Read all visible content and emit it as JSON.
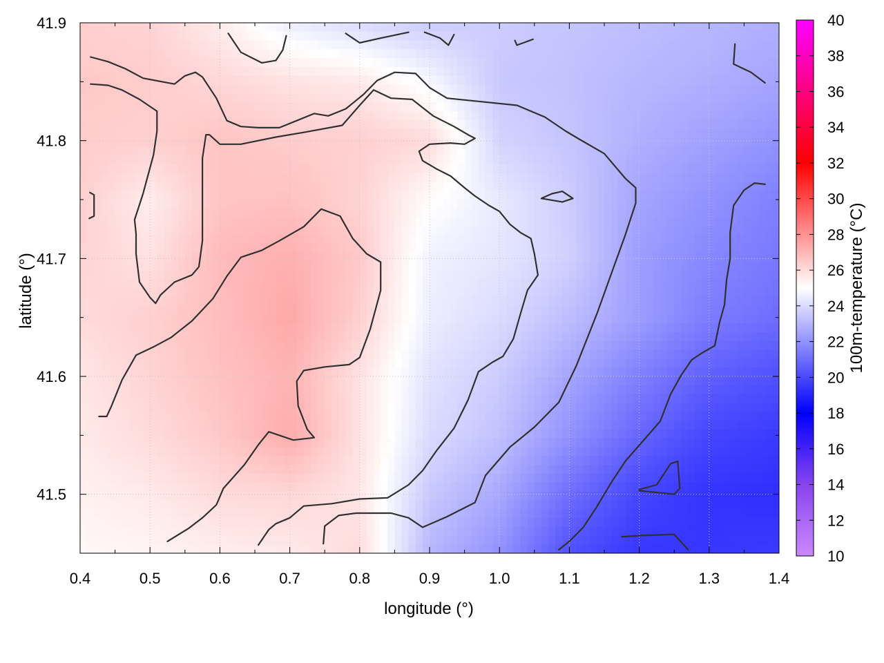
{
  "chart_data": {
    "type": "heatmap",
    "xlabel": "longitude (°)",
    "ylabel": "latitude (°)",
    "colorbar_label": "100m-temperature (°C)",
    "xlim": [
      0.4,
      1.4
    ],
    "ylim": [
      41.45,
      41.9
    ],
    "x_ticks": [
      "0.4",
      "0.5",
      "0.6",
      "0.7",
      "0.8",
      "0.9",
      "1.0",
      "1.1",
      "1.2",
      "1.3",
      "1.4"
    ],
    "y_ticks": [
      "41.5",
      "41.6",
      "41.7",
      "41.8",
      "41.9"
    ],
    "colorbar_range": [
      10,
      40
    ],
    "colorbar_ticks": [
      "10",
      "12",
      "14",
      "16",
      "18",
      "20",
      "22",
      "24",
      "26",
      "28",
      "30",
      "32",
      "34",
      "36",
      "38",
      "40"
    ],
    "colorscale": [
      {
        "value": 10,
        "color": "#cc88ff"
      },
      {
        "value": 14,
        "color": "#8844ee"
      },
      {
        "value": 18,
        "color": "#0000ff"
      },
      {
        "value": 25,
        "color": "#ffffff"
      },
      {
        "value": 32,
        "color": "#ff0000"
      },
      {
        "value": 40,
        "color": "#ff00ff"
      }
    ],
    "grid": true,
    "temperature_field": {
      "x": [
        0.4,
        0.5,
        0.6,
        0.7,
        0.8,
        0.9,
        1.0,
        1.1,
        1.2,
        1.3,
        1.4
      ],
      "y": [
        41.9,
        41.85,
        41.8,
        41.75,
        41.7,
        41.65,
        41.6,
        41.55,
        41.5,
        41.45
      ],
      "values": [
        [
          26.3,
          26.2,
          25.5,
          24.5,
          24.0,
          23.6,
          23.6,
          23.4,
          23.2,
          23.0,
          22.8
        ],
        [
          26.5,
          26.4,
          26.1,
          25.8,
          25.6,
          24.8,
          23.5,
          23.3,
          23.0,
          22.8,
          22.5
        ],
        [
          26.4,
          26.3,
          26.6,
          26.4,
          26.3,
          26.0,
          23.8,
          23.4,
          22.8,
          22.4,
          22.0
        ],
        [
          26.3,
          25.5,
          26.6,
          26.7,
          26.2,
          25.1,
          24.4,
          23.6,
          22.5,
          22.0,
          21.5
        ],
        [
          26.2,
          25.8,
          26.9,
          27.2,
          26.5,
          24.6,
          24.3,
          23.7,
          22.3,
          21.7,
          21.3
        ],
        [
          26.0,
          26.3,
          26.8,
          27.4,
          26.3,
          24.5,
          24.0,
          23.2,
          22.3,
          21.4,
          21.0
        ],
        [
          25.7,
          26.2,
          26.7,
          27.1,
          25.8,
          24.2,
          23.6,
          22.5,
          21.5,
          20.6,
          20.2
        ],
        [
          25.6,
          26.0,
          26.5,
          27.3,
          25.8,
          24.0,
          23.3,
          22.0,
          20.8,
          19.9,
          19.6
        ],
        [
          25.4,
          25.6,
          26.0,
          26.1,
          25.7,
          23.5,
          22.6,
          21.0,
          19.9,
          19.4,
          19.3
        ],
        [
          25.2,
          25.3,
          25.5,
          25.6,
          26.0,
          23.0,
          22.0,
          20.2,
          19.5,
          19.5,
          19.6
        ]
      ]
    },
    "contours": [
      {
        "points": [
          [
            0.612,
            41.891
          ],
          [
            0.63,
            41.875
          ],
          [
            0.66,
            41.866
          ],
          [
            0.68,
            41.868
          ],
          [
            0.69,
            41.877
          ],
          [
            0.695,
            41.889
          ]
        ]
      },
      {
        "points": [
          [
            0.78,
            41.891
          ],
          [
            0.8,
            41.883
          ],
          [
            0.83,
            41.887
          ],
          [
            0.87,
            41.892
          ]
        ]
      },
      {
        "points": [
          [
            0.893,
            41.892
          ],
          [
            0.915,
            41.887
          ],
          [
            0.927,
            41.881
          ],
          [
            0.935,
            41.89
          ]
        ]
      },
      {
        "points": [
          [
            1.022,
            41.885
          ],
          [
            1.025,
            41.881
          ],
          [
            1.048,
            41.886
          ]
        ]
      },
      {
        "points": [
          [
            1.337,
            41.882
          ],
          [
            1.335,
            41.865
          ],
          [
            1.36,
            41.858
          ],
          [
            1.38,
            41.849
          ]
        ]
      },
      {
        "points": [
          [
            0.415,
            41.871
          ],
          [
            0.44,
            41.867
          ],
          [
            0.465,
            41.861
          ],
          [
            0.49,
            41.853
          ],
          [
            0.535,
            41.848
          ],
          [
            0.55,
            41.855
          ],
          [
            0.565,
            41.858
          ],
          [
            0.575,
            41.854
          ],
          [
            0.595,
            41.836
          ],
          [
            0.61,
            41.817
          ],
          [
            0.63,
            41.812
          ],
          [
            0.655,
            41.811
          ],
          [
            0.685,
            41.811
          ],
          [
            0.71,
            41.817
          ],
          [
            0.735,
            41.823
          ],
          [
            0.755,
            41.821
          ],
          [
            0.78,
            41.827
          ],
          [
            0.805,
            41.839
          ],
          [
            0.825,
            41.851
          ],
          [
            0.85,
            41.858
          ],
          [
            0.88,
            41.857
          ],
          [
            0.9,
            41.845
          ],
          [
            0.925,
            41.836
          ],
          [
            0.975,
            41.833
          ],
          [
            1.025,
            41.83
          ],
          [
            1.065,
            41.82
          ],
          [
            1.095,
            41.808
          ],
          [
            1.115,
            41.801
          ],
          [
            1.15,
            41.789
          ],
          [
            1.18,
            41.768
          ],
          [
            1.195,
            41.76
          ],
          [
            1.195,
            41.747
          ],
          [
            1.18,
            41.72
          ],
          [
            1.16,
            41.687
          ],
          [
            1.14,
            41.654
          ],
          [
            1.11,
            41.609
          ],
          [
            1.085,
            41.578
          ],
          [
            1.05,
            41.557
          ],
          [
            1.015,
            41.54
          ],
          [
            0.98,
            41.516
          ],
          [
            0.965,
            41.493
          ],
          [
            0.945,
            41.487
          ],
          [
            0.925,
            41.481
          ],
          [
            0.89,
            41.472
          ],
          [
            0.87,
            41.48
          ],
          [
            0.845,
            41.484
          ],
          [
            0.795,
            41.484
          ],
          [
            0.77,
            41.482
          ],
          [
            0.75,
            41.473
          ],
          [
            0.748,
            41.458
          ]
        ]
      },
      {
        "points": [
          [
            0.415,
            41.848
          ],
          [
            0.44,
            41.847
          ],
          [
            0.46,
            41.843
          ],
          [
            0.485,
            41.835
          ],
          [
            0.51,
            41.825
          ],
          [
            0.51,
            41.808
          ],
          [
            0.505,
            41.788
          ],
          [
            0.49,
            41.755
          ],
          [
            0.478,
            41.733
          ],
          [
            0.48,
            41.721
          ],
          [
            0.48,
            41.704
          ],
          [
            0.485,
            41.68
          ],
          [
            0.5,
            41.667
          ],
          [
            0.508,
            41.662
          ],
          [
            0.515,
            41.669
          ],
          [
            0.535,
            41.68
          ],
          [
            0.56,
            41.686
          ],
          [
            0.57,
            41.693
          ],
          [
            0.575,
            41.715
          ],
          [
            0.575,
            41.745
          ],
          [
            0.575,
            41.785
          ],
          [
            0.58,
            41.805
          ],
          [
            0.585,
            41.805
          ],
          [
            0.6,
            41.797
          ],
          [
            0.63,
            41.797
          ],
          [
            0.68,
            41.803
          ],
          [
            0.72,
            41.807
          ],
          [
            0.775,
            41.813
          ],
          [
            0.8,
            41.83
          ],
          [
            0.82,
            41.843
          ],
          [
            0.845,
            41.836
          ],
          [
            0.875,
            41.835
          ],
          [
            0.905,
            41.821
          ],
          [
            0.935,
            41.812
          ],
          [
            0.955,
            41.805
          ],
          [
            0.965,
            41.802
          ],
          [
            0.95,
            41.797
          ],
          [
            0.93,
            41.798
          ],
          [
            0.9,
            41.797
          ],
          [
            0.885,
            41.791
          ],
          [
            0.89,
            41.783
          ],
          [
            0.91,
            41.776
          ],
          [
            0.93,
            41.77
          ],
          [
            0.95,
            41.76
          ],
          [
            0.965,
            41.753
          ],
          [
            0.985,
            41.745
          ],
          [
            1.0,
            41.74
          ],
          [
            1.015,
            41.729
          ],
          [
            1.03,
            41.722
          ],
          [
            1.045,
            41.717
          ],
          [
            1.05,
            41.704
          ],
          [
            1.055,
            41.686
          ],
          [
            1.04,
            41.673
          ],
          [
            1.03,
            41.653
          ],
          [
            1.02,
            41.632
          ],
          [
            1.005,
            41.617
          ],
          [
            0.99,
            41.612
          ],
          [
            0.97,
            41.604
          ],
          [
            0.955,
            41.58
          ],
          [
            0.935,
            41.556
          ],
          [
            0.91,
            41.537
          ],
          [
            0.89,
            41.52
          ],
          [
            0.87,
            41.508
          ],
          [
            0.84,
            41.497
          ],
          [
            0.8,
            41.496
          ],
          [
            0.76,
            41.492
          ],
          [
            0.72,
            41.49
          ],
          [
            0.7,
            41.48
          ],
          [
            0.68,
            41.475
          ],
          [
            0.67,
            41.47
          ],
          [
            0.655,
            41.457
          ]
        ]
      },
      {
        "points": [
          [
            0.413,
            41.734
          ],
          [
            0.42,
            41.736
          ],
          [
            0.42,
            41.754
          ],
          [
            0.414,
            41.756
          ]
        ]
      },
      {
        "points": [
          [
            0.427,
            41.566
          ],
          [
            0.438,
            41.566
          ],
          [
            0.445,
            41.575
          ],
          [
            0.46,
            41.597
          ],
          [
            0.48,
            41.618
          ],
          [
            0.505,
            41.625
          ],
          [
            0.53,
            41.633
          ],
          [
            0.56,
            41.647
          ],
          [
            0.59,
            41.666
          ],
          [
            0.61,
            41.685
          ],
          [
            0.63,
            41.701
          ],
          [
            0.66,
            41.707
          ],
          [
            0.685,
            41.715
          ],
          [
            0.72,
            41.727
          ],
          [
            0.745,
            41.742
          ],
          [
            0.772,
            41.736
          ],
          [
            0.79,
            41.717
          ],
          [
            0.81,
            41.704
          ],
          [
            0.83,
            41.697
          ],
          [
            0.83,
            41.673
          ],
          [
            0.815,
            41.64
          ],
          [
            0.8,
            41.616
          ],
          [
            0.785,
            41.61
          ],
          [
            0.75,
            41.608
          ],
          [
            0.72,
            41.605
          ],
          [
            0.71,
            41.596
          ],
          [
            0.712,
            41.575
          ],
          [
            0.725,
            41.555
          ],
          [
            0.735,
            41.548
          ],
          [
            0.705,
            41.546
          ],
          [
            0.67,
            41.553
          ],
          [
            0.655,
            41.542
          ],
          [
            0.635,
            41.525
          ],
          [
            0.605,
            41.505
          ],
          [
            0.6,
            41.498
          ],
          [
            0.595,
            41.491
          ],
          [
            0.575,
            41.48
          ],
          [
            0.555,
            41.471
          ],
          [
            0.525,
            41.46
          ]
        ]
      },
      {
        "points": [
          [
            1.06,
            41.751
          ],
          [
            1.075,
            41.755
          ],
          [
            1.09,
            41.757
          ],
          [
            1.105,
            41.751
          ],
          [
            1.09,
            41.748
          ],
          [
            1.06,
            41.751
          ]
        ]
      },
      {
        "points": [
          [
            1.38,
            41.763
          ],
          [
            1.365,
            41.764
          ],
          [
            1.35,
            41.758
          ],
          [
            1.335,
            41.745
          ],
          [
            1.33,
            41.722
          ],
          [
            1.33,
            41.7
          ],
          [
            1.325,
            41.682
          ],
          [
            1.322,
            41.661
          ],
          [
            1.315,
            41.646
          ],
          [
            1.308,
            41.626
          ],
          [
            1.29,
            41.62
          ],
          [
            1.275,
            41.614
          ],
          [
            1.26,
            41.601
          ],
          [
            1.245,
            41.585
          ],
          [
            1.23,
            41.562
          ],
          [
            1.205,
            41.545
          ],
          [
            1.18,
            41.528
          ],
          [
            1.16,
            41.51
          ],
          [
            1.14,
            41.49
          ],
          [
            1.12,
            41.472
          ],
          [
            1.1,
            41.46
          ],
          [
            1.085,
            41.453
          ]
        ]
      },
      {
        "points": [
          [
            1.2,
            41.504
          ],
          [
            1.225,
            41.508
          ],
          [
            1.245,
            41.526
          ],
          [
            1.255,
            41.528
          ],
          [
            1.258,
            41.505
          ],
          [
            1.25,
            41.5
          ],
          [
            1.2,
            41.503
          ]
        ]
      },
      {
        "points": [
          [
            1.175,
            41.464
          ],
          [
            1.205,
            41.465
          ],
          [
            1.25,
            41.466
          ],
          [
            1.27,
            41.453
          ]
        ]
      }
    ]
  }
}
